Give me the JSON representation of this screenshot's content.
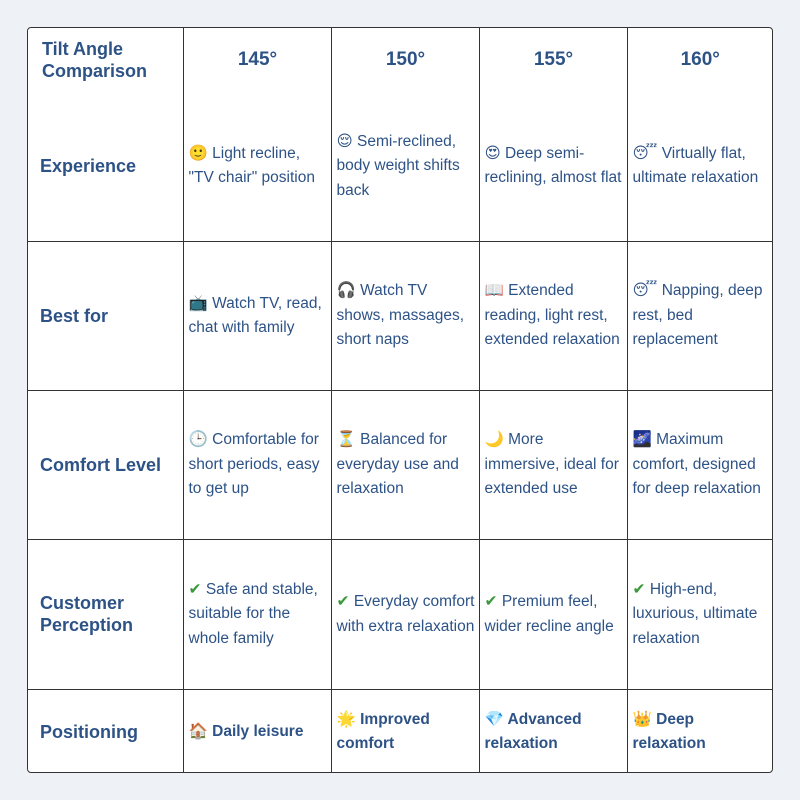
{
  "header": {
    "corner": "Tilt Angle Comparison",
    "angles": [
      "145°",
      "150°",
      "155°",
      "160°"
    ]
  },
  "rows": [
    {
      "label": "Experience",
      "cells": [
        {
          "icon": "🙂",
          "text": "Light recline, \"TV chair\" position"
        },
        {
          "icon": "😌",
          "text": "Semi-reclined, body weight shifts back"
        },
        {
          "icon": "😍",
          "text": "Deep semi-reclining, almost flat"
        },
        {
          "icon": "😴",
          "text": "Virtually flat, ultimate relaxation"
        }
      ]
    },
    {
      "label": "Best for",
      "cells": [
        {
          "icon": "📺",
          "text": "Watch TV, read, chat with family"
        },
        {
          "icon": "🎧",
          "text": "Watch TV shows, massages, short naps"
        },
        {
          "icon": "📖",
          "text": "Extended reading, light rest, extended relaxation"
        },
        {
          "icon": "😴",
          "text": "Napping, deep rest, bed replacement"
        }
      ]
    },
    {
      "label": "Comfort Level",
      "cells": [
        {
          "icon": "🕒",
          "text": "Comfortable for short periods, easy to get up"
        },
        {
          "icon": "⏳",
          "text": "Balanced for everyday use and relaxation"
        },
        {
          "icon": "🌙",
          "text": "More immersive, ideal for extended use"
        },
        {
          "icon": "🌌",
          "text": "Maximum comfort, designed for deep relaxation"
        }
      ]
    },
    {
      "label": "Customer Perception",
      "cells": [
        {
          "icon": "✔",
          "text": "Safe and stable, suitable for the whole family"
        },
        {
          "icon": "✔",
          "text": "Everyday comfort with extra relaxation"
        },
        {
          "icon": "✔",
          "text": "Premium feel, wider recline angle"
        },
        {
          "icon": "✔",
          "text": "High-end, luxurious, ultimate relaxation"
        }
      ]
    },
    {
      "label": "Positioning",
      "cells": [
        {
          "icon": "🏠",
          "text": "Daily leisure"
        },
        {
          "icon": "🌟",
          "text": "Improved comfort"
        },
        {
          "icon": "💎",
          "text": "Advanced relaxation"
        },
        {
          "icon": "👑",
          "text": "Deep relaxation"
        }
      ]
    }
  ],
  "colors": {
    "text": "#2d5286",
    "check": "#3a9a3a",
    "border": "#333333",
    "background": "#eef1f5"
  }
}
